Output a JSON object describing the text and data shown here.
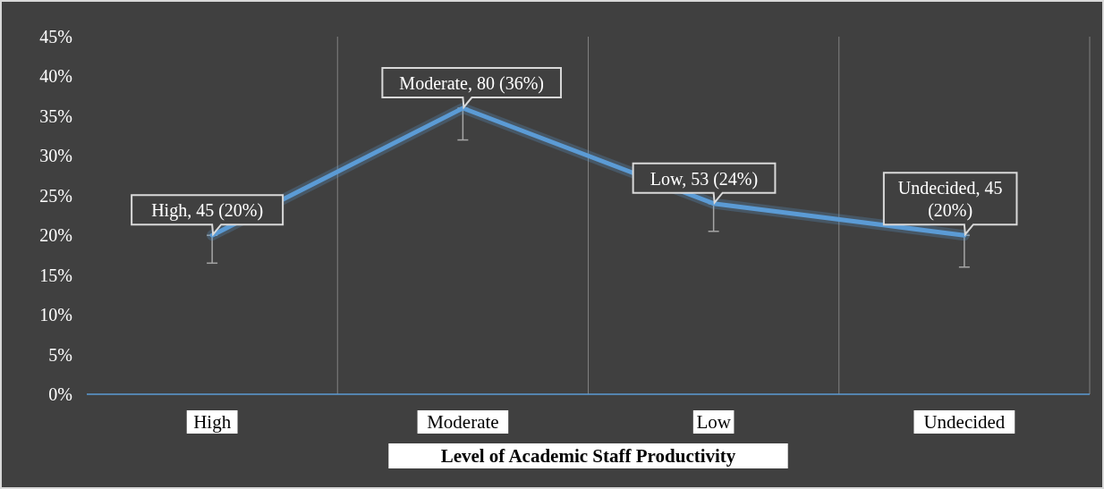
{
  "chart_data": {
    "type": "line",
    "xlabel": "Level of Academic Staff Productivity",
    "categories": [
      "High",
      "Moderate",
      "Low",
      "Undecided"
    ],
    "series": [
      {
        "color": "#5b9bd5",
        "values": [
          20,
          36,
          24,
          20
        ],
        "errors": [
          [
            16.5,
            20
          ],
          [
            32,
            36
          ],
          [
            20.5,
            24
          ],
          [
            16,
            20
          ]
        ],
        "value_labels": [
          "High,  45 (20%)",
          "Moderate, 80 (36%)",
          "Low,  53 (24%)",
          "Undecided, 45 (20%)"
        ]
      }
    ],
    "ylim": [
      0,
      45
    ],
    "yticks": [
      {
        "value": 0,
        "label": "0%"
      },
      {
        "value": 5,
        "label": "5%"
      },
      {
        "value": 10,
        "label": "10%"
      },
      {
        "value": 15,
        "label": "15%"
      },
      {
        "value": 20,
        "label": "20%"
      },
      {
        "value": 25,
        "label": "25%"
      },
      {
        "value": 30,
        "label": "30%"
      },
      {
        "value": 35,
        "label": "35%"
      },
      {
        "value": 40,
        "label": "40%"
      },
      {
        "value": 45,
        "label": "45%"
      }
    ],
    "grid": "x",
    "marker": "none",
    "line_style": "solid"
  }
}
